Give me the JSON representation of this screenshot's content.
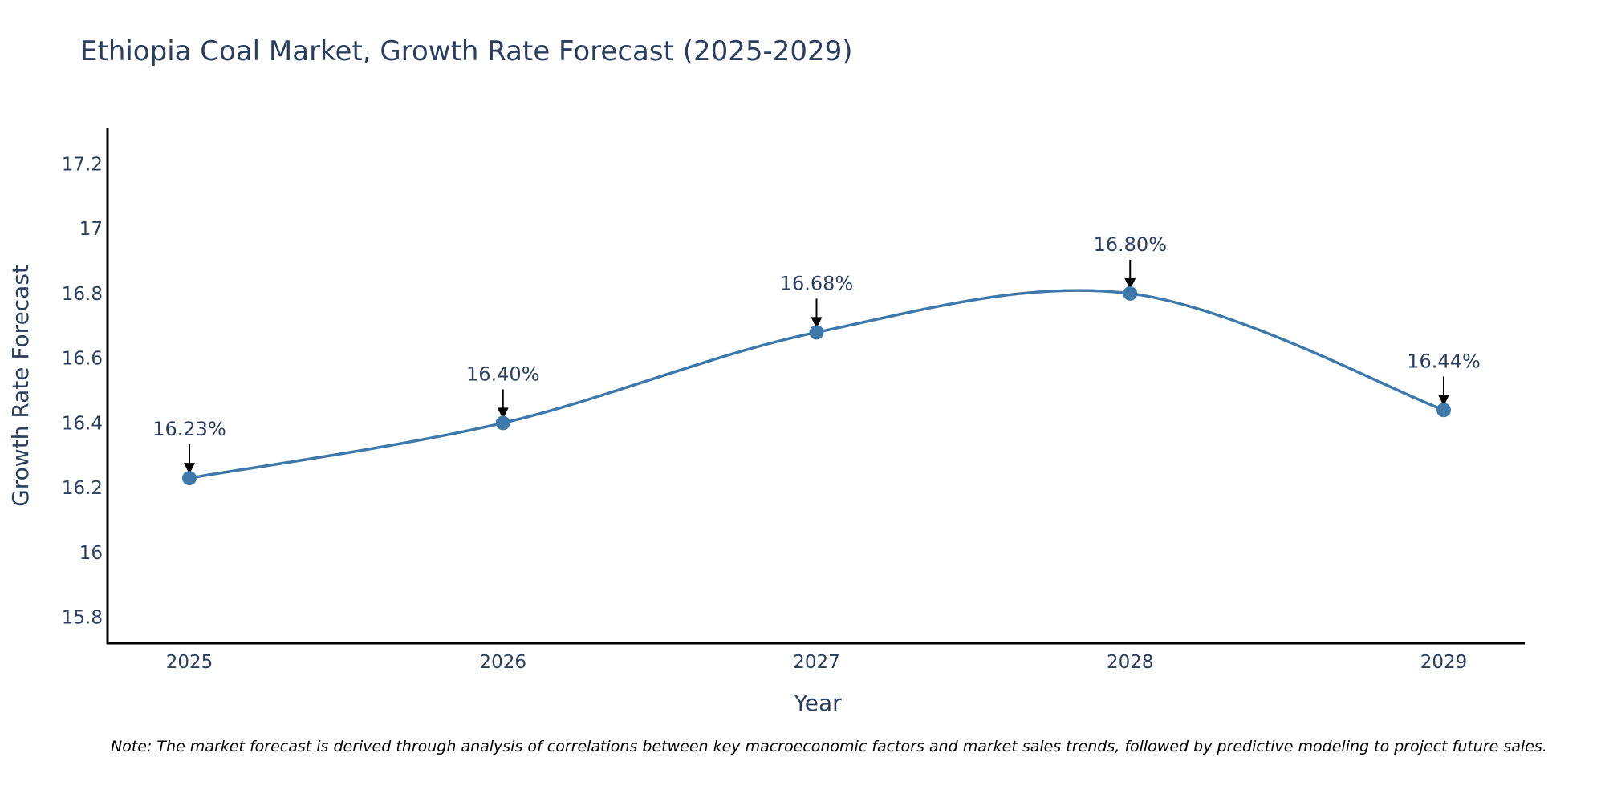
{
  "chart_data": {
    "type": "line",
    "title": "Ethiopia Coal Market, Growth Rate Forecast (2025-2029)",
    "xlabel": "Year",
    "ylabel": "Growth Rate Forecast",
    "categories": [
      "2025",
      "2026",
      "2027",
      "2028",
      "2029"
    ],
    "values": [
      16.23,
      16.4,
      16.68,
      16.8,
      16.44
    ],
    "data_labels": [
      "16.23%",
      "16.40%",
      "16.68%",
      "16.80%",
      "16.44%"
    ],
    "ylim": [
      15.72,
      17.31
    ],
    "yticks": [
      15.8,
      16,
      16.2,
      16.4,
      16.6,
      16.8,
      17,
      17.2
    ],
    "ytick_labels": [
      "15.8",
      "16",
      "16.2",
      "16.4",
      "16.6",
      "16.8",
      "17",
      "17.2"
    ],
    "line_shape": "spline",
    "grid": false,
    "colors": {
      "line": "#3d7aab",
      "marker": "#3d7aab",
      "arrow": "#000000",
      "text": "#2a3f5f",
      "axis": "#000000"
    }
  },
  "note": "Note: The market forecast is derived through analysis of correlations between key macroeconomic factors and market sales trends, followed by predictive modeling to project future sales."
}
